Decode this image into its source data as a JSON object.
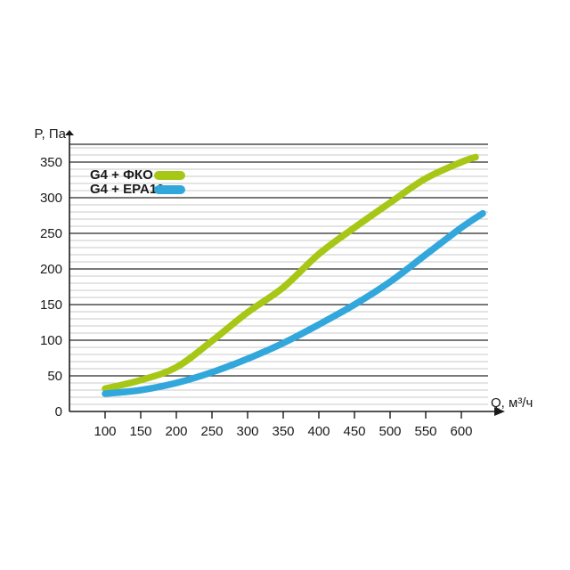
{
  "chart_data": {
    "type": "line",
    "xlabel": "Q, м³/ч",
    "ylabel": "P, Па",
    "x_ticks": [
      100,
      150,
      200,
      250,
      300,
      350,
      400,
      450,
      500,
      550,
      600
    ],
    "y_ticks": [
      0,
      50,
      100,
      150,
      200,
      250,
      300,
      350
    ],
    "xlim": [
      50,
      637.5
    ],
    "ylim": [
      0,
      375
    ],
    "grid": {
      "minor_step": 10,
      "major_step": 50,
      "minor_color": "#c9c9c9",
      "major_color": "#4d4d4d"
    },
    "axis_color": "#1a1a1a",
    "legend_position": "top-left-inside",
    "series": [
      {
        "name": "G4 + ФКО",
        "color": "#a6c715",
        "points": [
          [
            100,
            32
          ],
          [
            150,
            44
          ],
          [
            200,
            62
          ],
          [
            250,
            99
          ],
          [
            300,
            139
          ],
          [
            350,
            174
          ],
          [
            400,
            221
          ],
          [
            450,
            258
          ],
          [
            500,
            293
          ],
          [
            550,
            327
          ],
          [
            600,
            350
          ],
          [
            620,
            357
          ]
        ]
      },
      {
        "name": "G4 + EPA10",
        "color": "#32a7dc",
        "points": [
          [
            100,
            25
          ],
          [
            150,
            30
          ],
          [
            200,
            40
          ],
          [
            250,
            55
          ],
          [
            300,
            74
          ],
          [
            350,
            96
          ],
          [
            400,
            122
          ],
          [
            450,
            150
          ],
          [
            500,
            182
          ],
          [
            550,
            220
          ],
          [
            600,
            258
          ],
          [
            630,
            278
          ]
        ]
      }
    ]
  }
}
